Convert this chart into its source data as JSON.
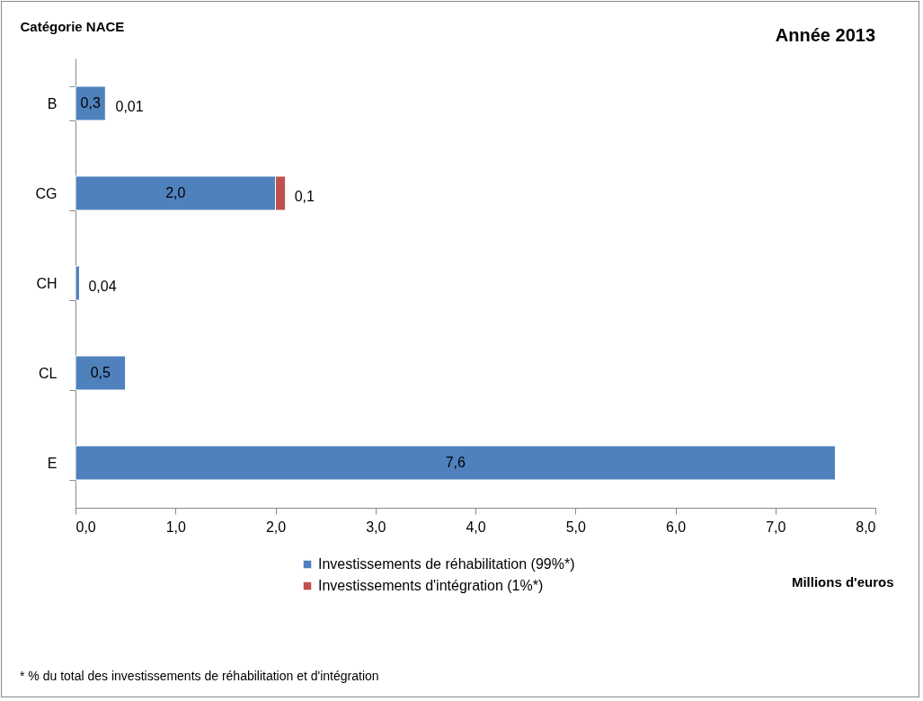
{
  "chart_data": {
    "type": "bar",
    "orientation": "horizontal",
    "stacked": true,
    "title": "Année 2013",
    "xlabel": "Millions d'euros",
    "ylabel": "Catégorie   NACE",
    "categories": [
      "B",
      "CG",
      "CH",
      "CL",
      "E"
    ],
    "series": [
      {
        "name": "Investissements de réhabilitation (99%*)",
        "color": "#4f81bd",
        "values": [
          0.3,
          2.0,
          0.04,
          0.5,
          7.6
        ],
        "value_labels": [
          "0,3",
          "2,0",
          "0,04",
          "0,5",
          "7,6"
        ]
      },
      {
        "name": "Investissements d'intégration (1%*)",
        "color": "#c0504d",
        "values": [
          0.01,
          0.1,
          null,
          null,
          null
        ],
        "value_labels": [
          "0,01",
          "0,1",
          null,
          null,
          null
        ]
      }
    ],
    "xlim": [
      0,
      8
    ],
    "xticks": [
      {
        "value": 0,
        "label": "0,0"
      },
      {
        "value": 1,
        "label": "1,0"
      },
      {
        "value": 2,
        "label": "2,0"
      },
      {
        "value": 3,
        "label": "3,0"
      },
      {
        "value": 4,
        "label": "4,0"
      },
      {
        "value": 5,
        "label": "5,0"
      },
      {
        "value": 6,
        "label": "6,0"
      },
      {
        "value": 7,
        "label": "7,0"
      },
      {
        "value": 8,
        "label": "8,0"
      }
    ],
    "grid": false,
    "legend": "bottom",
    "annotations": [
      "* %  du total des investissements de réhabilitation et d'intégration"
    ]
  }
}
